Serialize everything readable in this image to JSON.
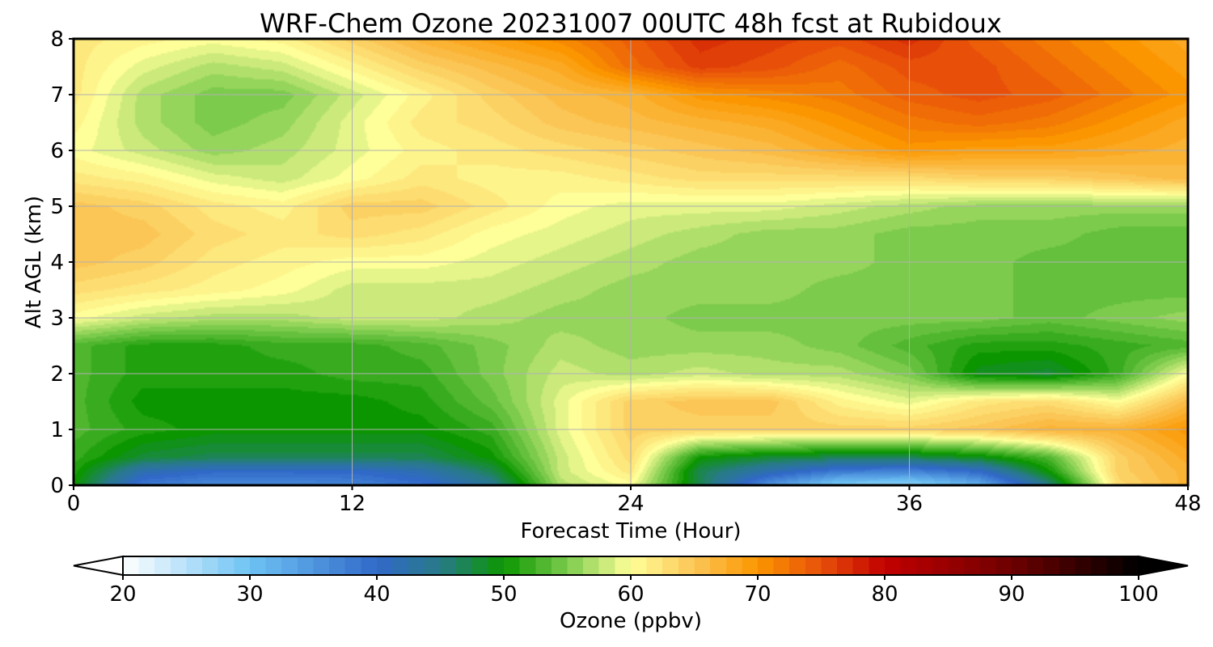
{
  "chart_data": {
    "type": "heatmap",
    "title": "WRF-Chem Ozone  20231007 00UTC 48h fcst at Rubidoux",
    "xlabel": "Forecast Time (Hour)",
    "ylabel": "Alt AGL (km)",
    "xlim": [
      0,
      48
    ],
    "ylim": [
      0,
      8
    ],
    "x_ticks": [
      0,
      12,
      24,
      36,
      48
    ],
    "y_ticks": [
      0,
      1,
      2,
      3,
      4,
      5,
      6,
      7,
      8
    ],
    "grid": true,
    "x": [
      0,
      3,
      6,
      9,
      12,
      15,
      18,
      21,
      24,
      27,
      30,
      33,
      36,
      39,
      42,
      45,
      48
    ],
    "y": [
      0,
      0.25,
      0.5,
      1,
      1.5,
      2,
      2.5,
      3,
      3.5,
      4,
      4.5,
      5,
      5.5,
      6,
      6.5,
      7,
      7.5,
      8
    ],
    "z": [
      [
        50,
        38,
        36,
        36,
        37,
        39,
        44,
        57,
        60,
        47,
        35,
        28,
        27,
        32,
        45,
        63,
        67
      ],
      [
        51,
        42,
        40,
        40,
        40,
        42,
        47,
        58,
        62,
        47,
        42,
        38,
        37,
        40,
        50,
        64,
        67
      ],
      [
        52,
        48,
        47,
        47,
        47,
        47,
        50,
        58,
        63,
        50,
        48,
        47,
        47,
        49,
        53,
        64,
        68
      ],
      [
        53,
        51,
        50,
        50,
        50,
        50,
        52,
        59,
        64,
        64,
        64,
        64,
        64,
        65,
        67,
        67,
        70
      ],
      [
        53,
        50,
        50,
        50,
        50,
        51,
        54,
        59,
        64,
        65,
        65,
        61,
        59,
        62,
        63,
        60,
        66
      ],
      [
        53,
        51,
        51,
        51,
        52,
        52,
        55,
        58,
        57,
        58,
        57,
        57,
        55,
        49,
        48,
        52,
        60
      ],
      [
        53,
        51,
        51,
        52,
        52,
        53,
        55,
        57,
        56,
        56,
        56,
        55,
        53,
        51,
        51,
        52,
        53
      ],
      [
        60,
        58,
        57,
        57,
        58,
        58,
        57,
        56,
        56,
        55,
        55,
        55,
        55,
        55,
        54,
        55,
        56
      ],
      [
        63,
        62,
        61,
        60,
        58,
        58,
        58,
        57,
        56,
        56,
        56,
        55,
        55,
        55,
        54,
        54,
        54
      ],
      [
        65,
        64,
        62,
        61,
        60,
        60,
        59,
        58,
        57,
        56,
        56,
        56,
        55,
        55,
        54,
        54,
        54
      ],
      [
        65,
        65,
        63,
        62,
        63,
        62,
        60,
        59,
        58,
        57,
        56,
        56,
        55,
        55,
        55,
        54,
        54
      ],
      [
        65,
        64,
        62,
        61,
        64,
        64,
        62,
        60,
        59,
        59,
        59,
        58,
        57,
        56,
        56,
        56,
        56
      ],
      [
        62,
        61,
        59,
        58,
        60,
        62,
        61,
        61,
        62,
        63,
        63,
        63,
        63,
        64,
        64,
        65,
        66
      ],
      [
        60,
        58,
        56,
        57,
        59,
        61,
        62,
        63,
        64,
        65,
        66,
        68,
        70,
        69,
        69,
        68,
        67
      ],
      [
        61,
        57,
        55,
        56,
        59,
        62,
        63,
        65,
        66,
        67,
        68,
        70,
        72,
        73,
        72,
        70,
        68
      ],
      [
        62,
        57,
        55,
        55,
        58,
        61,
        64,
        66,
        67,
        70,
        71,
        72,
        74,
        75,
        74,
        72,
        70
      ],
      [
        62,
        59,
        57,
        58,
        61,
        64,
        66,
        68,
        73,
        76,
        75,
        73,
        75,
        75,
        73,
        71,
        69
      ],
      [
        62,
        61,
        60,
        61,
        64,
        67,
        69,
        71,
        74,
        77,
        76,
        75,
        77,
        74,
        72,
        70,
        68
      ]
    ],
    "colorbar": {
      "label": "Ozone  (ppbv)",
      "min": 20,
      "max": 100,
      "ticks": [
        20,
        30,
        40,
        50,
        60,
        70,
        80,
        90,
        100
      ],
      "extend": "both",
      "stops": [
        {
          "value": 20,
          "color": "#ffffff"
        },
        {
          "value": 30,
          "color": "#6ec3f4"
        },
        {
          "value": 40,
          "color": "#3169c9"
        },
        {
          "value": 45,
          "color": "#287a88"
        },
        {
          "value": 50,
          "color": "#0b9600"
        },
        {
          "value": 55,
          "color": "#7ccb4d"
        },
        {
          "value": 60,
          "color": "#ffff99"
        },
        {
          "value": 65,
          "color": "#fbc656"
        },
        {
          "value": 70,
          "color": "#fb9600"
        },
        {
          "value": 75,
          "color": "#e8500a"
        },
        {
          "value": 80,
          "color": "#c20000"
        },
        {
          "value": 90,
          "color": "#6e0000"
        },
        {
          "value": 100,
          "color": "#000000"
        }
      ]
    }
  }
}
